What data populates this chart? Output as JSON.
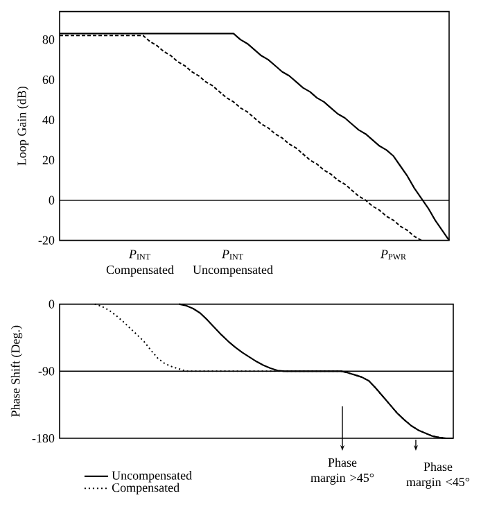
{
  "chart_data": [
    {
      "type": "line",
      "ylabel": "Loop Gain (dB)",
      "ylim": [
        -20,
        94
      ],
      "yticks": [
        -20,
        0,
        20,
        40,
        60,
        80
      ],
      "tick_labels": "y",
      "categories": [
        null,
        null,
        null,
        null,
        null,
        null,
        null,
        null,
        null,
        null,
        null,
        null,
        null,
        null,
        null,
        null,
        null,
        null,
        null,
        null,
        null,
        null,
        null,
        null,
        null,
        null,
        null,
        null,
        null,
        null,
        null,
        null,
        null,
        null,
        null,
        null,
        null,
        null,
        null,
        null,
        null,
        null,
        null,
        null,
        null,
        null,
        null,
        null,
        null,
        null,
        null,
        null,
        null,
        null,
        null,
        null,
        null
      ],
      "series": [
        {
          "color": "#000000",
          "line_style": "solid",
          "values": [
            83,
            83,
            83,
            83,
            83,
            83,
            83,
            83,
            83,
            83,
            83,
            83,
            83,
            83,
            83,
            83,
            83,
            83,
            83,
            83,
            83,
            83,
            83,
            83,
            83,
            83,
            80,
            78,
            75,
            72,
            70,
            67,
            64,
            62,
            59,
            56,
            54,
            51,
            49,
            46,
            43,
            41,
            38,
            35,
            33,
            30,
            27,
            25,
            22,
            17,
            12,
            6,
            1,
            -4,
            -10,
            -15,
            -20
          ]
        },
        {
          "color": "#000000",
          "line_style": "dashed",
          "values": [
            82,
            82,
            82,
            82,
            82,
            82,
            82,
            82,
            82,
            82,
            82,
            82,
            82,
            79,
            77,
            74,
            72,
            69,
            67,
            64,
            62,
            59,
            57,
            54,
            51,
            49,
            46,
            44,
            41,
            38,
            36,
            33,
            31,
            28,
            26,
            23,
            20,
            18,
            15,
            13,
            10,
            8,
            5,
            2,
            0,
            -3,
            -5,
            -8,
            -10,
            -13,
            -15,
            -18,
            -20,
            null,
            null,
            null,
            null
          ]
        }
      ],
      "ref_lines": [
        {
          "axis": "y",
          "value": 0
        }
      ],
      "annotations": [
        "*P*$_{INT}$",
        "Compensated",
        "*P*$_{INT}$",
        "Uncompensated",
        "*P*$_{PWR}$"
      ]
    },
    {
      "type": "line",
      "ylabel": "Phase Shift (Deg.)",
      "ylim": [
        -180,
        0
      ],
      "yticks": [
        -180,
        -90,
        0
      ],
      "tick_labels": "y",
      "legend": "bottom left",
      "categories": [
        null,
        null,
        null,
        null,
        null,
        null,
        null,
        null,
        null,
        null,
        null,
        null,
        null,
        null,
        null,
        null,
        null,
        null,
        null,
        null,
        null,
        null,
        null,
        null,
        null,
        null,
        null,
        null,
        null,
        null,
        null,
        null,
        null,
        null,
        null,
        null,
        null,
        null,
        null,
        null,
        null,
        null,
        null,
        null,
        null,
        null,
        null,
        null,
        null,
        null,
        null,
        null,
        null,
        null,
        null,
        null,
        null
      ],
      "series": [
        {
          "name": "Uncompensated",
          "color": "#000000",
          "line_style": "solid",
          "values": [
            null,
            null,
            null,
            null,
            null,
            null,
            null,
            null,
            null,
            null,
            null,
            null,
            null,
            null,
            null,
            null,
            null,
            0,
            -2,
            -6,
            -12,
            -21,
            -31,
            -41,
            -50,
            -58,
            -65,
            -71,
            -77,
            -82,
            -86,
            -89,
            -90,
            -90,
            -90,
            -90,
            -90,
            -90,
            -90,
            -90,
            -90,
            -92,
            -95,
            -98,
            -103,
            -113,
            -124,
            -135,
            -146,
            -155,
            -163,
            -169,
            -173,
            -177,
            -179,
            -180,
            -180
          ]
        },
        {
          "name": "Compensated",
          "color": "#000000",
          "line_style": "dotted",
          "values": [
            null,
            null,
            null,
            null,
            null,
            0,
            -3,
            -8,
            -15,
            -23,
            -32,
            -41,
            -50,
            -62,
            -73,
            -80,
            -84,
            -87,
            -90,
            -90,
            -90,
            -90,
            -90,
            -90,
            -90,
            -90,
            -90,
            -90,
            -90,
            -90,
            -90,
            -90,
            -90,
            -90,
            -90,
            -90,
            -90,
            -90,
            -90,
            -90,
            -90,
            -92,
            -95,
            -98,
            -103,
            -113,
            -124,
            -135,
            -146,
            -155,
            -163,
            -169,
            -173,
            -177,
            -179,
            -180,
            -180
          ]
        }
      ],
      "ref_lines": [
        {
          "axis": "y",
          "value": -90
        }
      ],
      "annotations": [
        "Phase margin >45°",
        "Phase margin <45°"
      ]
    }
  ]
}
